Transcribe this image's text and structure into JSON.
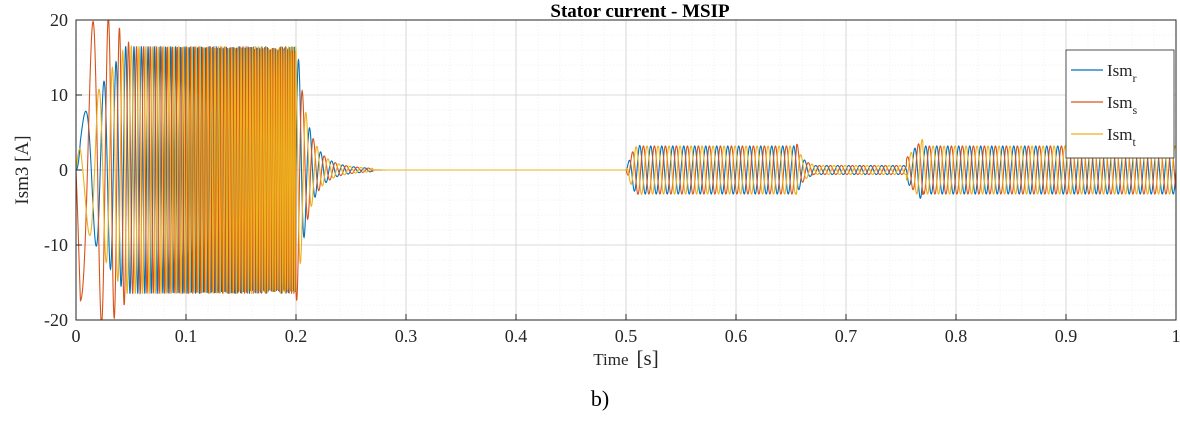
{
  "chart_data": {
    "type": "line",
    "title": "Stator current - MSIP",
    "xlabel_main": "Time",
    "xlabel_unit": "[s]",
    "ylabel": "Ism3 [A]",
    "xlim": [
      0,
      1
    ],
    "ylim": [
      -20,
      20
    ],
    "xticks": [
      0,
      0.1,
      0.2,
      0.3,
      0.4,
      0.5,
      0.6,
      0.7,
      0.8,
      0.9,
      1
    ],
    "xtick_labels": [
      "0",
      "0.1",
      "0.2",
      "0.3",
      "0.4",
      "0.5",
      "0.6",
      "0.7",
      "0.8",
      "0.9",
      "1"
    ],
    "yticks": [
      20,
      10,
      0,
      -10,
      -20
    ],
    "ytick_labels": [
      "20",
      "10",
      "0",
      "-10",
      "-20"
    ],
    "grid": true,
    "legend_position": "top-right",
    "series": [
      {
        "name_main": "Ism",
        "name_sub": "r",
        "color": "#0072BD",
        "phase_deg": 0
      },
      {
        "name_main": "Ism",
        "name_sub": "s",
        "color": "#D95319",
        "phase_deg": -120
      },
      {
        "name_main": "Ism",
        "name_sub": "t",
        "color": "#EDB120",
        "phase_deg": 120
      }
    ],
    "segments": [
      {
        "t_start": 0.0,
        "t_end": 0.2,
        "amplitude": 16.5,
        "note": "startup, frequency ramps up"
      },
      {
        "t_start": 0.2,
        "t_end": 0.5,
        "amplitude": 0,
        "note": "decays to zero"
      },
      {
        "t_start": 0.5,
        "t_end": 0.65,
        "amplitude": 3.2
      },
      {
        "t_start": 0.67,
        "t_end": 0.75,
        "amplitude": 0.6
      },
      {
        "t_start": 0.76,
        "t_end": 1.0,
        "amplitude": 3.2
      }
    ]
  },
  "caption": "b)"
}
